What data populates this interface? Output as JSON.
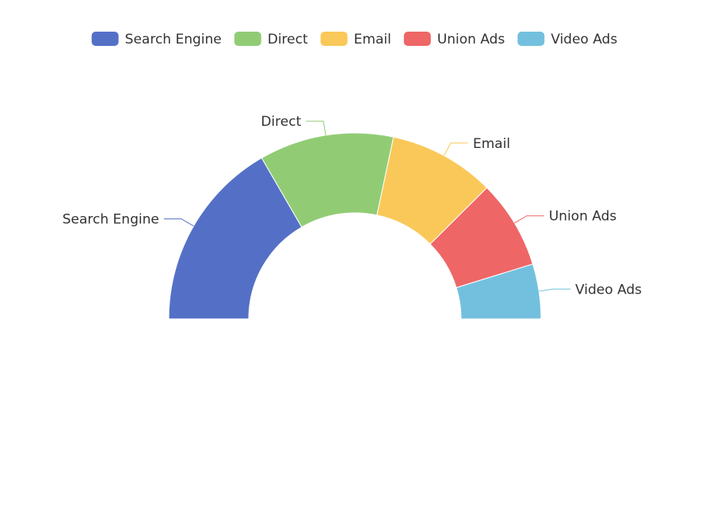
{
  "chart_data": {
    "type": "pie",
    "variant": "half-doughnut",
    "categories": [
      "Search Engine",
      "Direct",
      "Email",
      "Union Ads",
      "Video Ads"
    ],
    "values": [
      1048,
      735,
      580,
      484,
      300
    ],
    "colors": [
      "#5470c6",
      "#91cc75",
      "#fac858",
      "#ee6666",
      "#73c0de"
    ],
    "legend_position": "top-center",
    "start_angle_deg": 180,
    "sweep_deg": 180
  }
}
